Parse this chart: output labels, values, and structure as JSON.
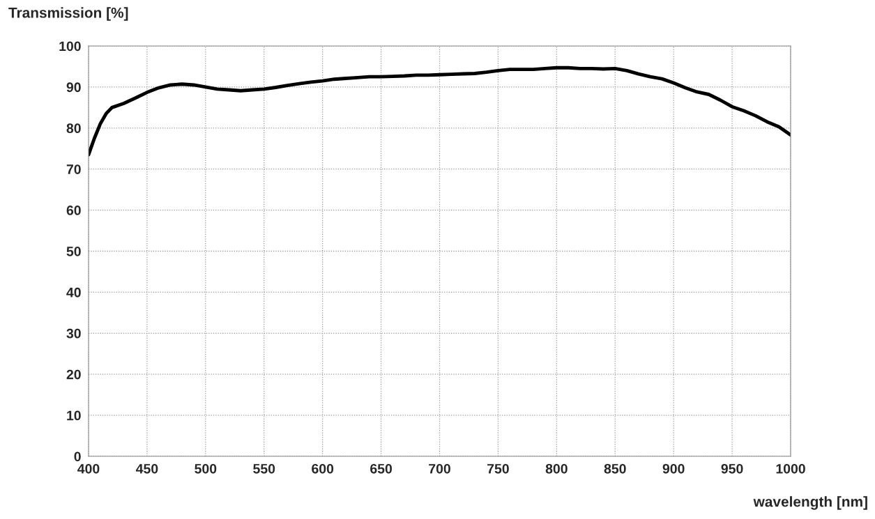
{
  "chart_data": {
    "type": "line",
    "xlabel": "wavelength [nm]",
    "ylabel": "Transmission [%]",
    "xlim": [
      400,
      1000
    ],
    "xticks": [
      400,
      450,
      500,
      550,
      600,
      650,
      700,
      750,
      800,
      850,
      900,
      950,
      1000
    ],
    "ylim": [
      0,
      100
    ],
    "yticks": [
      0,
      10,
      20,
      30,
      40,
      50,
      60,
      70,
      80,
      90,
      100
    ],
    "grid": true,
    "line_style": "solid",
    "marker": "none",
    "series": [
      {
        "color": "#000000",
        "x": [
          400,
          405,
          410,
          415,
          420,
          430,
          440,
          450,
          460,
          470,
          480,
          490,
          500,
          510,
          520,
          530,
          540,
          550,
          560,
          570,
          580,
          590,
          600,
          610,
          620,
          630,
          640,
          650,
          660,
          670,
          680,
          690,
          700,
          710,
          720,
          730,
          740,
          750,
          760,
          770,
          780,
          790,
          800,
          810,
          820,
          830,
          840,
          850,
          860,
          870,
          880,
          890,
          900,
          910,
          920,
          930,
          940,
          950,
          960,
          970,
          980,
          990,
          1000
        ],
        "values": [
          73.5,
          77.5,
          81,
          83.5,
          85,
          86,
          87.3,
          88.7,
          89.8,
          90.5,
          90.7,
          90.5,
          90,
          89.5,
          89.3,
          89.1,
          89.3,
          89.5,
          89.9,
          90.4,
          90.8,
          91.2,
          91.5,
          91.9,
          92.1,
          92.3,
          92.5,
          92.5,
          92.6,
          92.7,
          92.9,
          92.9,
          93,
          93.1,
          93.2,
          93.3,
          93.6,
          94,
          94.3,
          94.3,
          94.3,
          94.5,
          94.7,
          94.7,
          94.5,
          94.5,
          94.4,
          94.5,
          94,
          93.2,
          92.5,
          92,
          91,
          89.8,
          88.8,
          88.2,
          86.8,
          85.2,
          84.2,
          83,
          81.5,
          80.3,
          78.3
        ]
      }
    ]
  }
}
